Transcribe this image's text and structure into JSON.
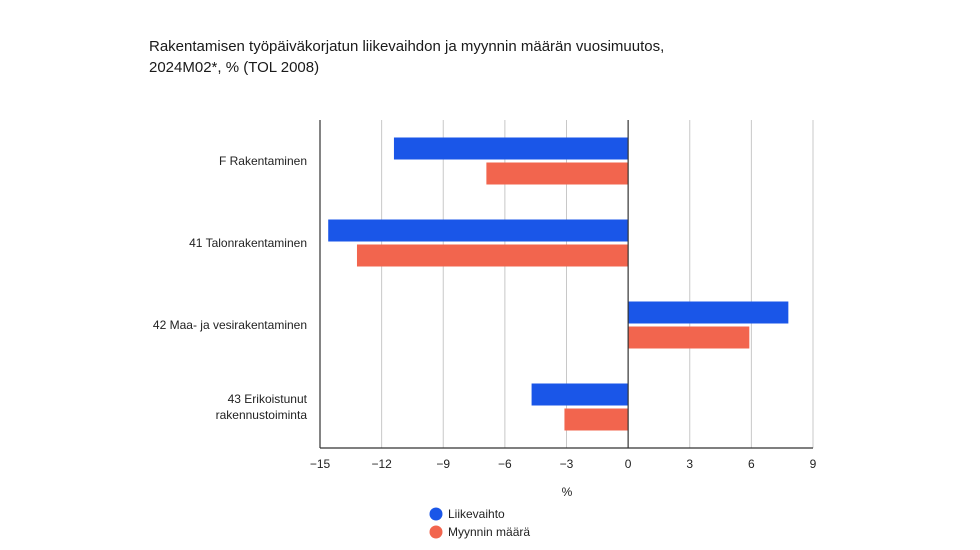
{
  "chart_data": {
    "type": "bar",
    "orientation": "horizontal",
    "title_line1": "Rakentamisen työpäiväkorjatun liikevaihdon ja myynnin määrän vuosimuutos,",
    "title_line2": "2024M02*, % (TOL 2008)",
    "xlabel": "%",
    "xlim": [
      -15,
      9
    ],
    "xticks": [
      -15,
      -12,
      -9,
      -6,
      -3,
      0,
      3,
      6,
      9
    ],
    "xtick_labels": [
      "−15",
      "−12",
      "−9",
      "−6",
      "−3",
      "0",
      "3",
      "6",
      "9"
    ],
    "categories": [
      [
        "F Rakentaminen"
      ],
      [
        "41 Talonrakentaminen"
      ],
      [
        "42 Maa- ja vesirakentaminen"
      ],
      [
        "43 Erikoistunut",
        "rakennustoiminta"
      ]
    ],
    "series": [
      {
        "name": "Liikevaihto",
        "color": "#1a56e8",
        "values": [
          -11.4,
          -14.6,
          7.8,
          -4.7
        ]
      },
      {
        "name": "Myynnin määrä",
        "color": "#f2654e",
        "values": [
          -6.9,
          -13.2,
          5.9,
          -3.1
        ]
      }
    ],
    "grid": "vertical",
    "legend_position": "bottom"
  }
}
